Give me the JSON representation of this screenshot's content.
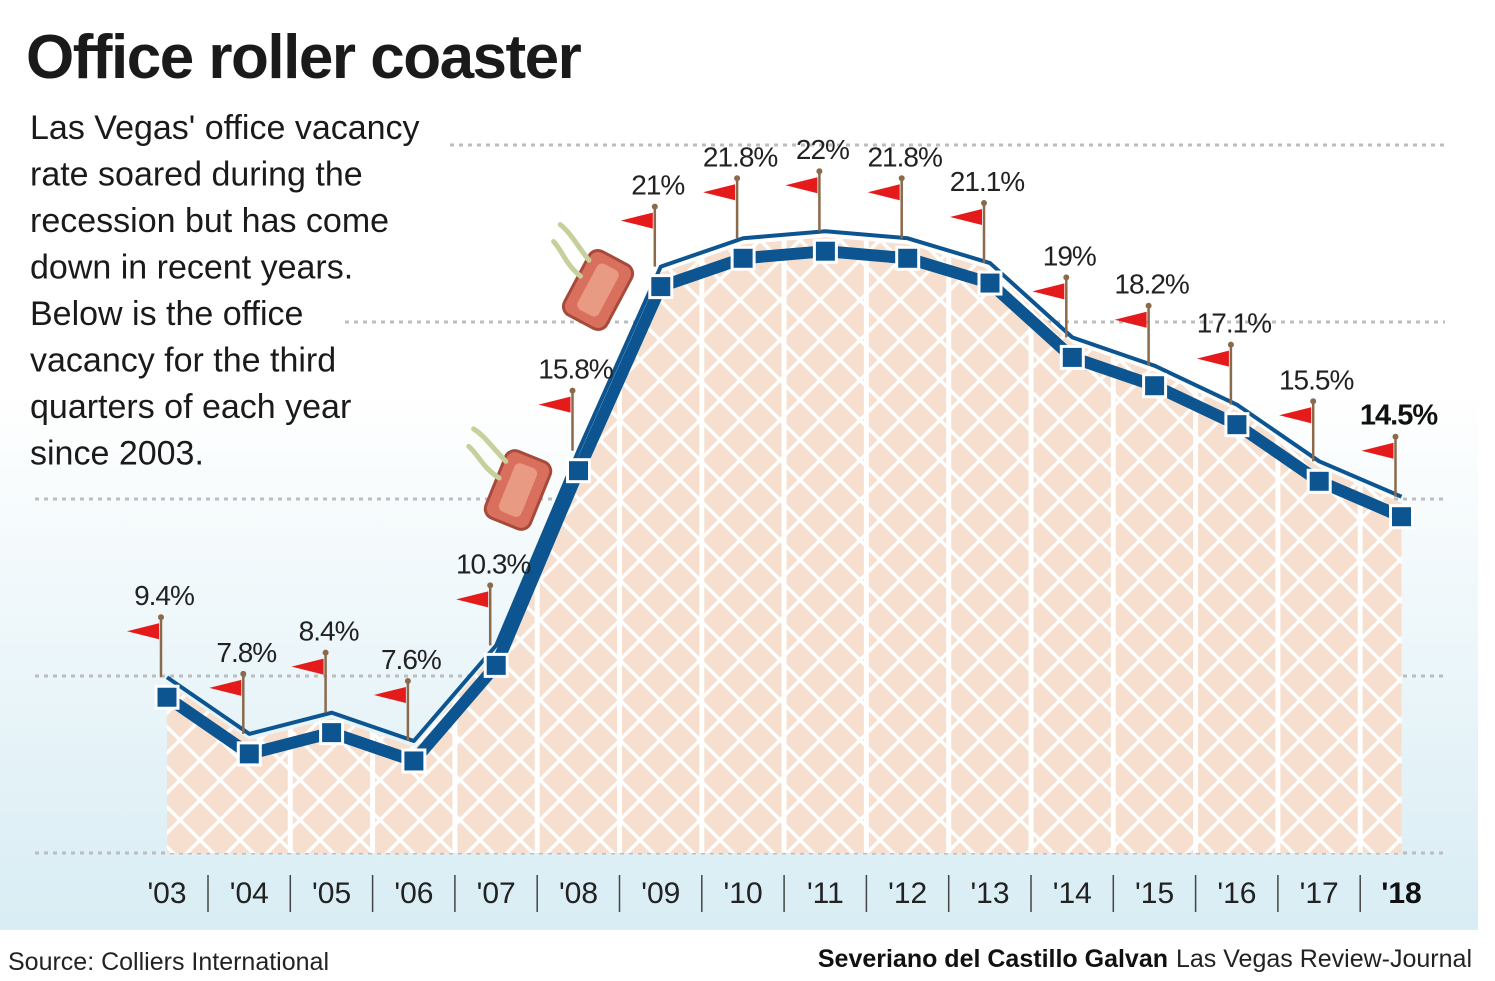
{
  "title": "Office roller coaster",
  "description": [
    "Las Vegas' office vacancy",
    "rate soared during the",
    "recession but has come",
    "down in recent years.",
    "Below is the office",
    "vacancy for the third",
    "quarters of each year",
    "since 2003."
  ],
  "source": "Source: Colliers International",
  "credit": {
    "name": "Severiano del Castillo Galvan",
    "org": "Las Vegas Review-Journal"
  },
  "colors": {
    "line": "#0c5590",
    "fill": "#f6dfcf",
    "lattice": "#ffffff",
    "flag": "#e51b1b",
    "flag_pole": "#8a6a4a",
    "grid": "#bdbdbd",
    "background_bottom": "#d8edf4"
  },
  "chart_data": {
    "type": "line",
    "categories": [
      "'03",
      "'04",
      "'05",
      "'06",
      "'07",
      "'08",
      "'09",
      "'10",
      "'11",
      "'12",
      "'13",
      "'14",
      "'15",
      "'16",
      "'17",
      "'18"
    ],
    "values": [
      9.4,
      7.8,
      8.4,
      7.6,
      10.3,
      15.8,
      21,
      21.8,
      22,
      21.8,
      21.1,
      19,
      18.2,
      17.1,
      15.5,
      14.5
    ],
    "labels": [
      "9.4%",
      "7.8%",
      "8.4%",
      "7.6%",
      "10.3%",
      "15.8%",
      "21%",
      "21.8%",
      "22%",
      "21.8%",
      "21.1%",
      "19%",
      "18.2%",
      "17.1%",
      "15.5%",
      "14.5%"
    ],
    "ylim": [
      5,
      25
    ],
    "grid": true,
    "highlight_last": true
  }
}
